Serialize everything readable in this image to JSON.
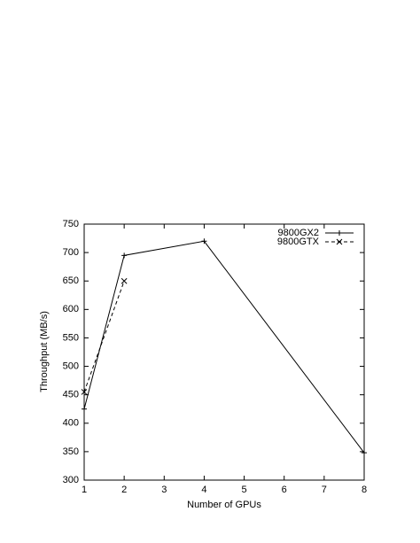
{
  "chart_data": {
    "type": "line",
    "xlabel": "Number of GPUs",
    "ylabel": "Throughput (MB/s)",
    "xlim": [
      1,
      8
    ],
    "xticks": [
      1,
      2,
      3,
      4,
      5,
      6,
      7,
      8
    ],
    "ylim": [
      300,
      750
    ],
    "yticks": [
      300,
      350,
      400,
      450,
      500,
      550,
      600,
      650,
      700,
      750
    ],
    "legend": "top-right",
    "series": [
      {
        "name": "9800GX2",
        "color": "#000000",
        "dash": "solid",
        "marker": "plus",
        "x": [
          1,
          2,
          4,
          8
        ],
        "values": [
          425,
          695,
          720,
          348
        ]
      },
      {
        "name": "9800GTX",
        "color": "#000000",
        "dash": "dashed",
        "marker": "cross",
        "x": [
          1,
          2
        ],
        "values": [
          455,
          650
        ]
      }
    ]
  }
}
